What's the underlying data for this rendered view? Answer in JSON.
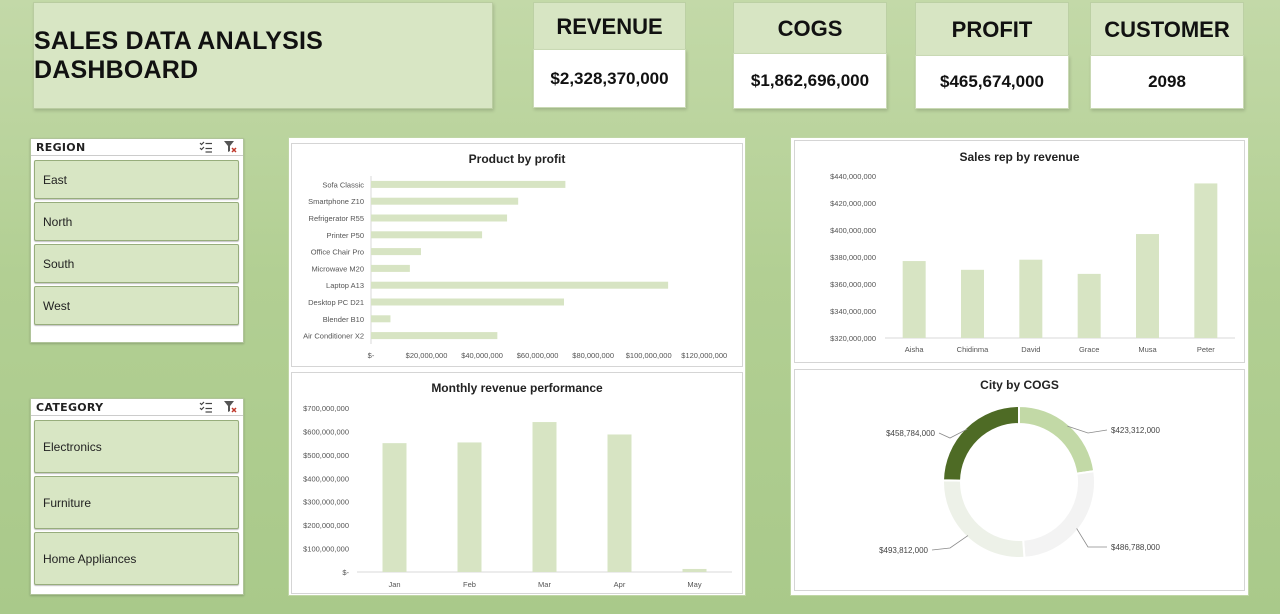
{
  "dashboard": {
    "title": "SALES DATA ANALYSIS DASHBOARD"
  },
  "kpis": {
    "revenue": {
      "label": "REVENUE",
      "value": "$2,328,370,000"
    },
    "cogs": {
      "label": "COGS",
      "value": "$1,862,696,000"
    },
    "profit": {
      "label": "PROFIT",
      "value": "$465,674,000"
    },
    "customer": {
      "label": "CUSTOMER",
      "value": "2098"
    }
  },
  "slicers": {
    "region": {
      "title": "REGION",
      "items": [
        "East",
        "North",
        "South",
        "West"
      ]
    },
    "category": {
      "title": "CATEGORY",
      "items": [
        "Electronics",
        "Furniture",
        "Home Appliances"
      ]
    }
  },
  "colors": {
    "bar": "#d7e4c3",
    "donut_dark": "#4e6b25",
    "donut_mid": "#c2d9a6",
    "donut_light": "#edf1e8",
    "donut_lighter": "#f3f3f3"
  },
  "chart_data": [
    {
      "type": "bar",
      "orientation": "horizontal",
      "title": "Product by profit",
      "categories": [
        "Sofa Classic",
        "Smartphone Z10",
        "Refrigerator R55",
        "Printer P50",
        "Office Chair Pro",
        "Microwave M20",
        "Laptop A13",
        "Desktop PC D21",
        "Blender B10",
        "Air Conditioner X2"
      ],
      "values": [
        70000000,
        53000000,
        49000000,
        40000000,
        18000000,
        14000000,
        107000000,
        69500000,
        7000000,
        45500000
      ],
      "xlim": [
        0,
        130000000
      ],
      "tick_labels": [
        "$-",
        "$20,000,000",
        "$40,000,000",
        "$60,000,000",
        "$80,000,000",
        "$100,000,000",
        "$120,000,000"
      ],
      "grid": false
    },
    {
      "type": "bar",
      "title": "Monthly revenue performance",
      "categories": [
        "Jan",
        "Feb",
        "Mar",
        "Apr",
        "May"
      ],
      "values": [
        550000000,
        553000000,
        640000000,
        587000000,
        13000000
      ],
      "ylim": [
        0,
        700000000
      ],
      "tick_labels": [
        "$-",
        "$100,000,000",
        "$200,000,000",
        "$300,000,000",
        "$400,000,000",
        "$500,000,000",
        "$600,000,000",
        "$700,000,000"
      ],
      "grid": false
    },
    {
      "type": "bar",
      "title": "Sales rep by revenue",
      "categories": [
        "Aisha",
        "Chidinma",
        "David",
        "Grace",
        "Musa",
        "Peter"
      ],
      "values": [
        377000000,
        370500000,
        378000000,
        367500000,
        397000000,
        434500000
      ],
      "ylim": [
        320000000,
        440000000
      ],
      "tick_labels": [
        "$320,000,000",
        "$340,000,000",
        "$360,000,000",
        "$380,000,000",
        "$400,000,000",
        "$420,000,000",
        "$440,000,000"
      ],
      "grid": false
    },
    {
      "type": "pie",
      "style": "donut",
      "title": "City by COGS",
      "values": [
        423312000,
        486788000,
        493812000,
        458784000
      ],
      "labels": [
        "$423,312,000",
        "$486,788,000",
        "$493,812,000",
        "$458,784,000"
      ]
    }
  ]
}
